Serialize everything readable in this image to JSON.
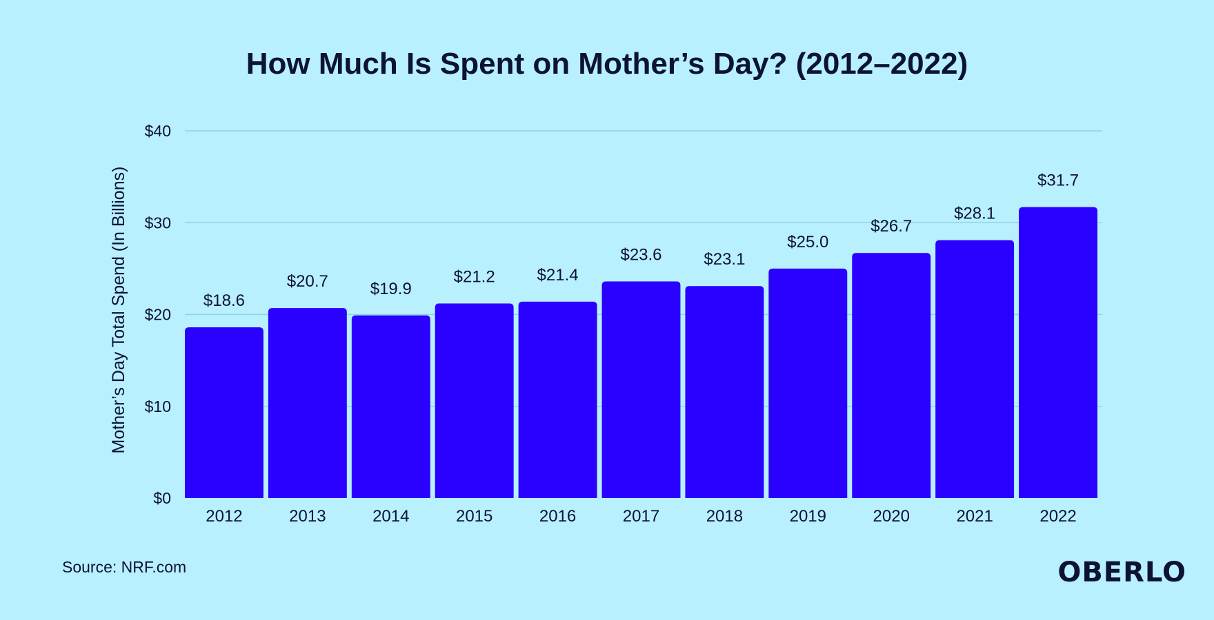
{
  "chart_data": {
    "type": "bar",
    "title": "How Much Is Spent on Mother’s Day? (2012–2022)",
    "ylabel": "Mother’s Day Total Spend (In Billions)",
    "xlabel": "",
    "categories": [
      "2012",
      "2013",
      "2014",
      "2015",
      "2016",
      "2017",
      "2018",
      "2019",
      "2020",
      "2021",
      "2022"
    ],
    "values": [
      18.6,
      20.7,
      19.9,
      21.2,
      21.4,
      23.6,
      23.1,
      25.0,
      26.7,
      28.1,
      31.7
    ],
    "value_labels": [
      "$18.6",
      "$20.7",
      "$19.9",
      "$21.2",
      "$21.4",
      "$23.6",
      "$23.1",
      "$25.0",
      "$26.7",
      "$28.1",
      "$31.7"
    ],
    "ylim": [
      0,
      40
    ],
    "yticks": [
      0,
      10,
      20,
      30,
      40
    ],
    "ytick_labels": [
      "$0",
      "$10",
      "$20",
      "$30",
      "$40"
    ],
    "grid": true,
    "legend": "none",
    "colors": {
      "bar": "#2a00ff",
      "background": "#b8f0fe",
      "grid": "#8fd3e8",
      "text": "#0d1333"
    }
  },
  "footer": {
    "source": "Source: NRF.com",
    "logo": "OBERLO"
  }
}
